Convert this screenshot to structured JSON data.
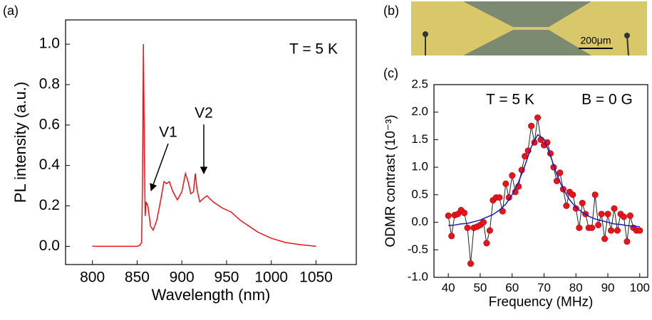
{
  "chart_data": [
    {
      "type": "line",
      "panel_label": "(a)",
      "xlabel": "Wavelength (nm)",
      "ylabel": "PL intensity (a.u.)",
      "annotations": [
        "T = 5 K",
        "V1",
        "V2"
      ],
      "color": "#e8141b",
      "x": [
        800,
        820,
        840,
        850,
        853,
        855,
        856,
        857,
        858,
        859,
        860,
        862,
        865,
        868,
        872,
        876,
        880,
        883,
        886,
        890,
        895,
        900,
        904,
        907,
        910,
        913,
        915,
        917,
        920,
        925,
        928,
        935,
        945,
        955,
        965,
        975,
        985,
        1000,
        1015,
        1030,
        1040,
        1050
      ],
      "values": [
        0.0,
        0.0,
        0.0,
        0.0,
        0.005,
        0.02,
        0.3,
        1.0,
        0.5,
        0.15,
        0.22,
        0.2,
        0.1,
        0.08,
        0.13,
        0.22,
        0.32,
        0.31,
        0.32,
        0.27,
        0.23,
        0.27,
        0.36,
        0.32,
        0.26,
        0.27,
        0.36,
        0.28,
        0.22,
        0.24,
        0.25,
        0.22,
        0.19,
        0.17,
        0.13,
        0.1,
        0.07,
        0.04,
        0.02,
        0.01,
        0.005,
        0.0
      ],
      "xlim": [
        770,
        1095
      ],
      "ylim": [
        -0.09,
        1.12
      ],
      "xticks": [
        800,
        850,
        900,
        950,
        1000,
        1050
      ],
      "yticks": [
        {
          "value": 0,
          "label": "0.0"
        },
        0.2,
        0.4,
        0.6,
        0.8,
        {
          "value": 1,
          "label": "1.0"
        }
      ]
    },
    {
      "type": "line",
      "panel_label": "(c)",
      "xlabel": "Frequency (MHz)",
      "ylabel": "ODMR contrast (10⁻³)",
      "annotations": [
        "T = 5 K",
        "B = 0 G"
      ],
      "series": [
        {
          "color": "#e8141b",
          "marker": true,
          "x": [
            40,
            41,
            42,
            43,
            44,
            45,
            46,
            47,
            48,
            49,
            50,
            51,
            52,
            53,
            54,
            55,
            56,
            57,
            58,
            59,
            60,
            61,
            62,
            63,
            64,
            65,
            66,
            67,
            68,
            69,
            70,
            71,
            72,
            73,
            74,
            75,
            76,
            77,
            78,
            79,
            80,
            81,
            82,
            83,
            84,
            85,
            86,
            87,
            88,
            89,
            90,
            91,
            92,
            93,
            94,
            95,
            96,
            97,
            98,
            99,
            100
          ],
          "values": [
            0.12,
            -0.25,
            0.13,
            0.15,
            0.22,
            0.17,
            -0.1,
            -0.75,
            -0.1,
            -0.08,
            -0.05,
            0.0,
            -0.38,
            -0.15,
            0.4,
            0.45,
            0.45,
            0.2,
            0.7,
            0.45,
            0.85,
            0.55,
            0.65,
            0.95,
            1.2,
            1.3,
            1.75,
            1.45,
            1.9,
            1.5,
            1.4,
            1.45,
            1.25,
            1.0,
            0.75,
            0.9,
            0.6,
            0.3,
            0.55,
            0.5,
            0.25,
            -0.1,
            0.35,
            0.15,
            -0.1,
            -0.1,
            0.5,
            -0.05,
            0.15,
            -0.3,
            0.15,
            -0.15,
            0.25,
            -0.15,
            0.15,
            0.1,
            -0.35,
            0.12,
            -0.1,
            -0.15,
            -0.15
          ]
        },
        {
          "color": "#1a1ab4",
          "x": [
            40,
            42,
            44,
            46,
            48,
            50,
            52,
            54,
            56,
            58,
            60,
            62,
            64,
            66,
            68,
            70,
            72,
            74,
            76,
            78,
            80,
            82,
            84,
            86,
            88,
            90,
            92,
            94,
            96,
            98,
            100
          ],
          "values": [
            -0.06,
            -0.05,
            -0.03,
            -0.02,
            0.01,
            0.04,
            0.09,
            0.14,
            0.22,
            0.33,
            0.5,
            0.73,
            1.03,
            1.37,
            1.59,
            1.51,
            1.21,
            0.87,
            0.6,
            0.41,
            0.27,
            0.18,
            0.11,
            0.06,
            0.03,
            0.0,
            -0.03,
            -0.04,
            -0.06,
            -0.07,
            -0.08
          ]
        }
      ],
      "xlim": [
        35.5,
        102.5
      ],
      "ylim": [
        -1.0,
        2.5
      ],
      "xticks": [
        40,
        50,
        60,
        70,
        80,
        90,
        100
      ],
      "yticks": [
        {
          "value": -1,
          "label": "-1.0"
        },
        -0.5,
        {
          "value": 0,
          "label": "0.0"
        },
        0.5,
        {
          "value": 1,
          "label": "1.0"
        },
        1.5,
        {
          "value": 2,
          "label": "2.0"
        },
        2.5
      ]
    }
  ],
  "image": {
    "panel_label": "(b)",
    "scale_bar": "200μm"
  }
}
